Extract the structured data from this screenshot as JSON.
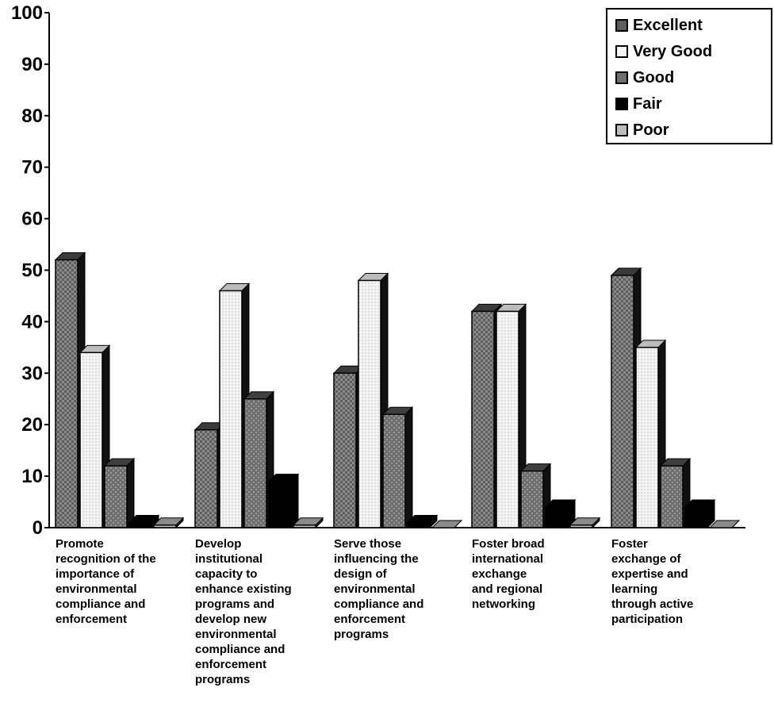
{
  "chart_data": {
    "type": "bar",
    "ylim": [
      0,
      100
    ],
    "yticks": [
      "0",
      "10",
      "20",
      "30",
      "40",
      "50",
      "60",
      "70",
      "80",
      "90",
      "100"
    ],
    "categories": [
      [
        "Promote",
        "recognition of the",
        "importance of",
        "environmental",
        "compliance and",
        "enforcement"
      ],
      [
        "Develop",
        "institutional",
        "capacity to",
        "enhance existing",
        "programs and",
        "develop new",
        "environmental",
        "compliance and",
        "enforcement",
        "programs"
      ],
      [
        "Serve those",
        "influencing the",
        "design of",
        "environmental",
        "compliance and",
        "enforcement",
        "programs"
      ],
      [
        "Foster broad",
        "international",
        "exchange",
        "and regional",
        "networking"
      ],
      [
        "Foster",
        "exchange of",
        "expertise and",
        "learning",
        "through active",
        "participation"
      ]
    ],
    "series": [
      {
        "name": "Excellent",
        "values": [
          52,
          19,
          30,
          42,
          49
        ]
      },
      {
        "name": "Very Good",
        "values": [
          34,
          46,
          48,
          42,
          35
        ]
      },
      {
        "name": "Good",
        "values": [
          12,
          25,
          22,
          11,
          12
        ]
      },
      {
        "name": "Fair",
        "values": [
          1,
          9,
          1,
          4,
          4
        ]
      },
      {
        "name": "Poor",
        "values": [
          0.5,
          0.5,
          0,
          0.5,
          0
        ]
      }
    ],
    "legend": "top-right",
    "grid": false
  },
  "colors": {
    "Excellent": "#6a6a6a",
    "Very Good": "#eeeeee",
    "Good": "#777777",
    "Fair": "#000000",
    "Poor": "#cfcfcf"
  }
}
